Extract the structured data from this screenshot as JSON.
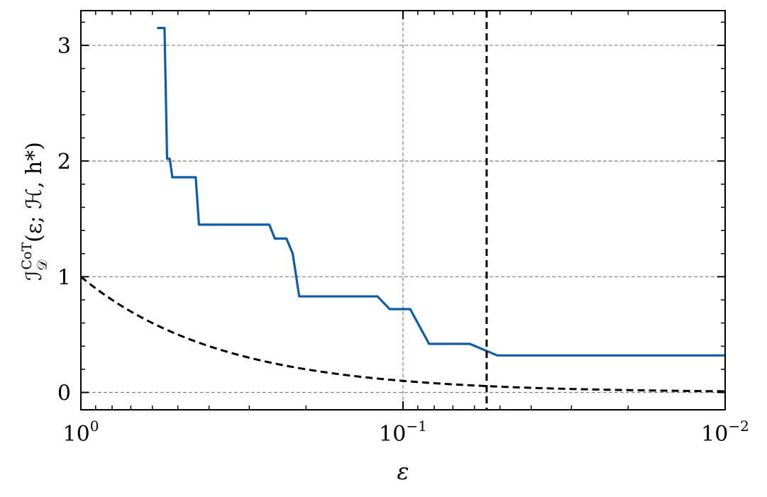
{
  "chart_data": {
    "type": "line",
    "xlabel": "ε",
    "ylabel": {
      "main": "ℐ",
      "sub": "𝒟",
      "sup": "CoT",
      "args": "(ε; ℋ, h*)"
    },
    "x_scale": "log",
    "x_reversed": true,
    "xlim": [
      1,
      0.01
    ],
    "ylim": [
      -0.15,
      3.3
    ],
    "grid": true,
    "x_ticks": [
      {
        "value": 1,
        "base": "10",
        "exp": "0"
      },
      {
        "value": 0.1,
        "base": "10",
        "exp": "−1"
      },
      {
        "value": 0.01,
        "base": "10",
        "exp": "−2"
      }
    ],
    "y_ticks": [
      {
        "value": 0,
        "label": "0"
      },
      {
        "value": 1,
        "label": "1"
      },
      {
        "value": 2,
        "label": "2"
      },
      {
        "value": 3,
        "label": "3"
      }
    ],
    "series": [
      {
        "color": "#0C5DA5",
        "style": "solid",
        "points": [
          [
            0.58,
            3.15
          ],
          [
            0.55,
            3.15
          ],
          [
            0.54,
            2.02
          ],
          [
            0.53,
            2.02
          ],
          [
            0.52,
            1.86
          ],
          [
            0.44,
            1.86
          ],
          [
            0.43,
            1.45
          ],
          [
            0.26,
            1.45
          ],
          [
            0.25,
            1.33
          ],
          [
            0.23,
            1.33
          ],
          [
            0.22,
            1.2
          ],
          [
            0.21,
            0.83
          ],
          [
            0.12,
            0.83
          ],
          [
            0.11,
            0.72
          ],
          [
            0.095,
            0.72
          ],
          [
            0.083,
            0.42
          ],
          [
            0.062,
            0.42
          ],
          [
            0.051,
            0.32
          ],
          [
            0.01,
            0.32
          ]
        ]
      },
      {
        "color": "#000000",
        "style": "dashed",
        "function": "epsilon"
      }
    ],
    "vline": {
      "x": 0.055,
      "color": "#000000",
      "style": "dashed"
    }
  }
}
